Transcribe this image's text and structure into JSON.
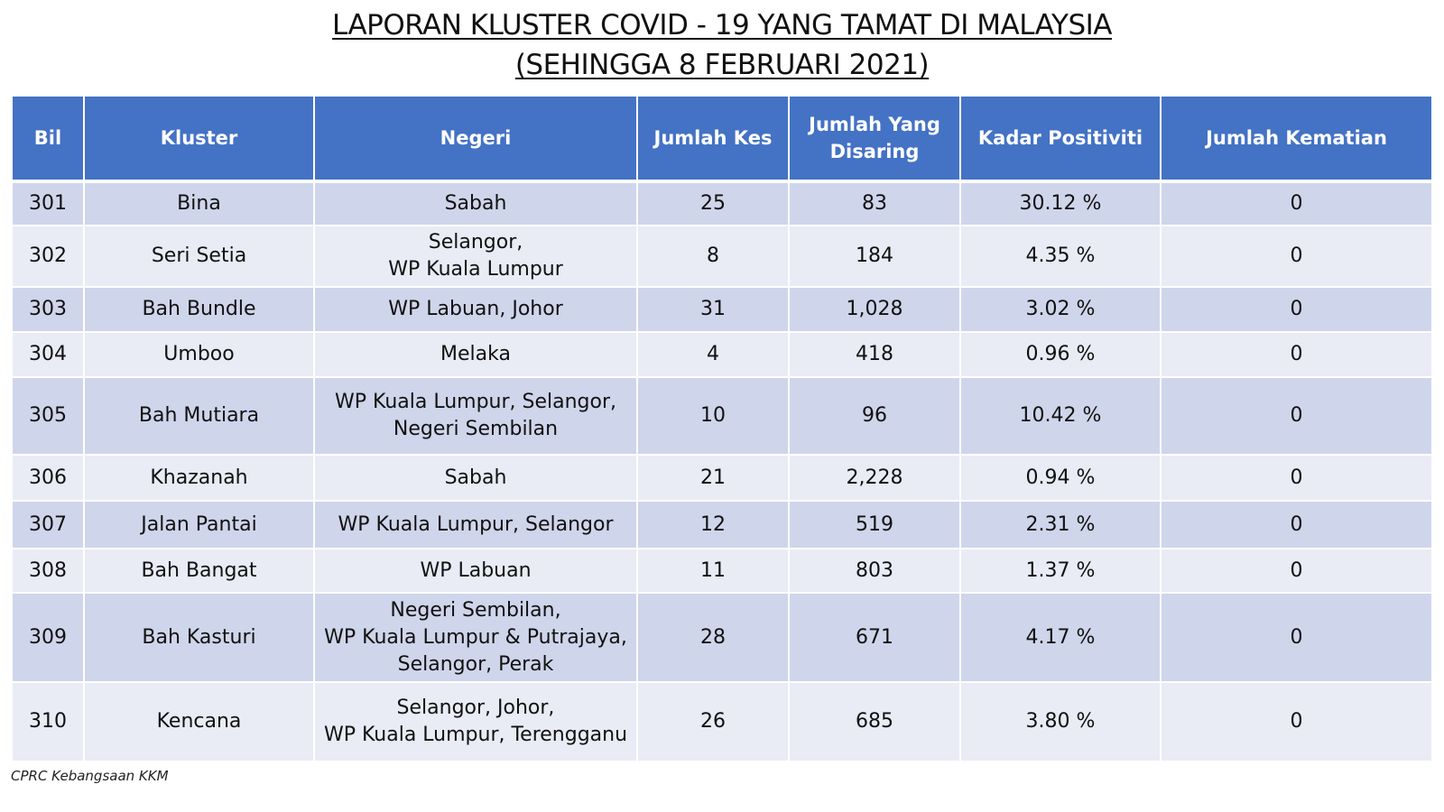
{
  "title": {
    "line1": "LAPORAN KLUSTER COVID - 19 YANG TAMAT DI MALAYSIA",
    "line2": "(SEHINGGA 8 FEBRUARI 2021)"
  },
  "table": {
    "headers": [
      {
        "label": "Bil"
      },
      {
        "label": "Kluster"
      },
      {
        "label": "Negeri"
      },
      {
        "label": "Jumlah Kes"
      },
      {
        "label": "Jumlah Yang Disaring"
      },
      {
        "label": "Kadar Positiviti"
      },
      {
        "label": "Jumlah Kematian"
      }
    ],
    "rows": [
      {
        "bil": "301",
        "kluster": "Bina",
        "negeri": [
          "Sabah"
        ],
        "kes": "25",
        "disaring": "83",
        "positiviti": "30.12 %",
        "kematian": "0"
      },
      {
        "bil": "302",
        "kluster": "Seri Setia",
        "negeri": [
          "Selangor,",
          "WP Kuala Lumpur"
        ],
        "kes": "8",
        "disaring": "184",
        "positiviti": "4.35 %",
        "kematian": "0"
      },
      {
        "bil": "303",
        "kluster": "Bah Bundle",
        "negeri": [
          "WP Labuan, Johor"
        ],
        "kes": "31",
        "disaring": "1,028",
        "positiviti": "3.02 %",
        "kematian": "0"
      },
      {
        "bil": "304",
        "kluster": "Umboo",
        "negeri": [
          "Melaka"
        ],
        "kes": "4",
        "disaring": "418",
        "positiviti": "0.96 %",
        "kematian": "0"
      },
      {
        "bil": "305",
        "kluster": "Bah Mutiara",
        "negeri": [
          "WP Kuala Lumpur, Selangor,",
          "Negeri Sembilan"
        ],
        "kes": "10",
        "disaring": "96",
        "positiviti": "10.42 %",
        "kematian": "0"
      },
      {
        "bil": "306",
        "kluster": "Khazanah",
        "negeri": [
          "Sabah"
        ],
        "kes": "21",
        "disaring": "2,228",
        "positiviti": "0.94 %",
        "kematian": "0"
      },
      {
        "bil": "307",
        "kluster": "Jalan Pantai",
        "negeri": [
          "WP Kuala Lumpur, Selangor"
        ],
        "kes": "12",
        "disaring": "519",
        "positiviti": "2.31 %",
        "kematian": "0"
      },
      {
        "bil": "308",
        "kluster": "Bah Bangat",
        "negeri": [
          "WP Labuan"
        ],
        "kes": "11",
        "disaring": "803",
        "positiviti": "1.37 %",
        "kematian": "0"
      },
      {
        "bil": "309",
        "kluster": "Bah Kasturi",
        "negeri": [
          "Negeri Sembilan,",
          "WP Kuala Lumpur & Putrajaya,",
          "Selangor, Perak"
        ],
        "kes": "28",
        "disaring": "671",
        "positiviti": "4.17 %",
        "kematian": "0"
      },
      {
        "bil": "310",
        "kluster": "Kencana",
        "negeri": [
          "Selangor,  Johor,",
          "WP Kuala Lumpur, Terengganu"
        ],
        "kes": "26",
        "disaring": "685",
        "positiviti": "3.80 %",
        "kematian": "0"
      }
    ]
  },
  "footer": {
    "source": "CPRC Kebangsaan KKM"
  },
  "colors": {
    "header_bg": "#4472c4",
    "row_dark": "#cfd5ea",
    "row_light": "#e9ebf5"
  }
}
